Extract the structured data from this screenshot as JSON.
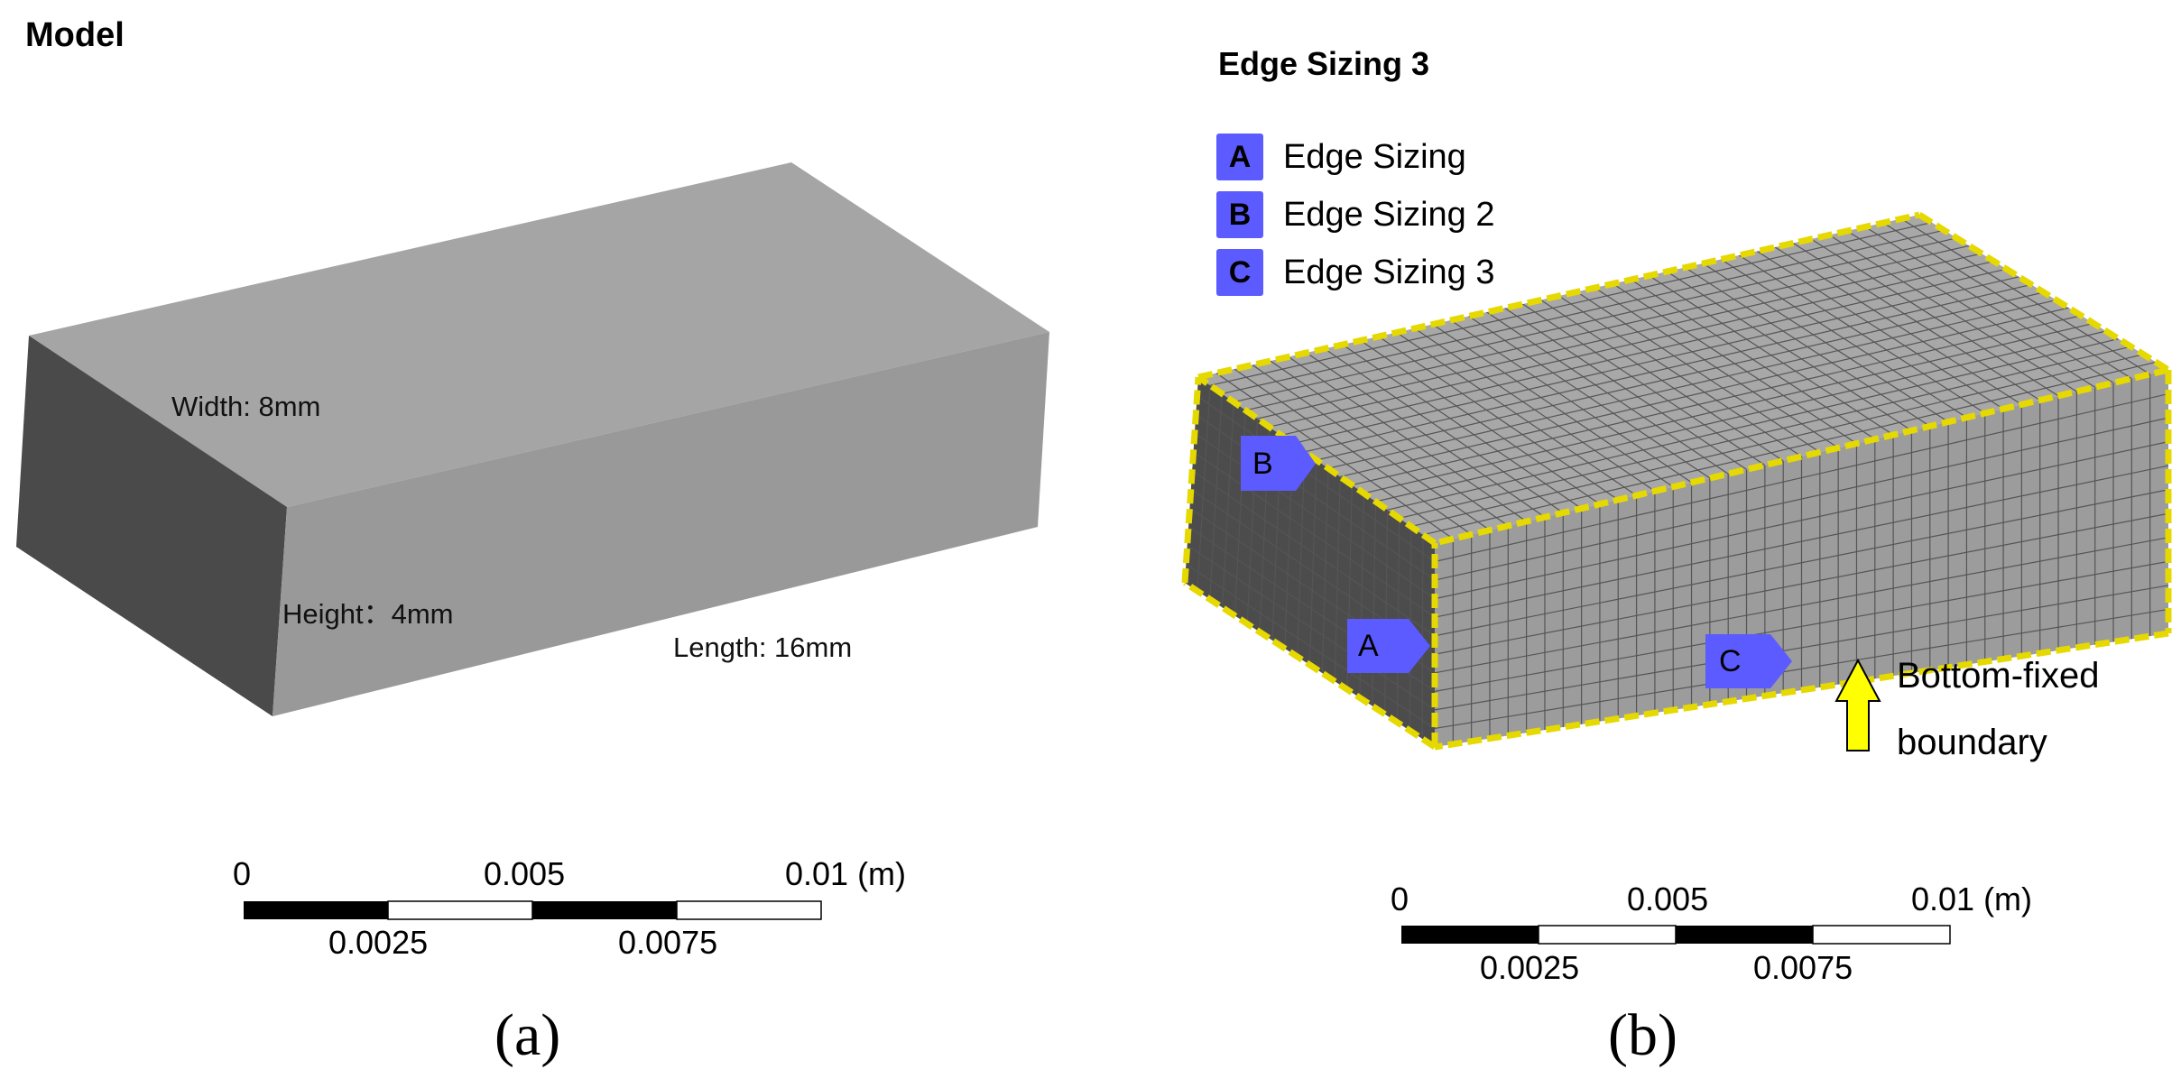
{
  "panel_a": {
    "title": "Model",
    "width_label": "Width: 8mm",
    "height_label": "Height：4mm",
    "length_label": "Length: 16mm",
    "caption": "(a)",
    "scale": {
      "t0": "0",
      "t1": "0.0025",
      "t2": "0.005",
      "t3": "0.0075",
      "t4": "0.01 (m)"
    }
  },
  "panel_b": {
    "title": "Edge Sizing 3",
    "legend": [
      {
        "key": "A",
        "label": "Edge Sizing"
      },
      {
        "key": "B",
        "label": "Edge Sizing 2"
      },
      {
        "key": "C",
        "label": "Edge Sizing 3"
      }
    ],
    "tags": {
      "a": "A",
      "b": "B",
      "c": "C"
    },
    "boundary_line1": "Bottom-fixed",
    "boundary_line2": "boundary",
    "caption": "(b)",
    "scale": {
      "t0": "0",
      "t1": "0.0025",
      "t2": "0.005",
      "t3": "0.0075",
      "t4": "0.01 (m)"
    }
  },
  "colors": {
    "top_face": "#a5a5a5",
    "front_face": "#999999",
    "side_face": "#4a4a4a",
    "mesh_line": "#555555",
    "edge_highlight": "#e6d900",
    "label_tag": "#5b5bff",
    "arrow": "#ffff00"
  }
}
